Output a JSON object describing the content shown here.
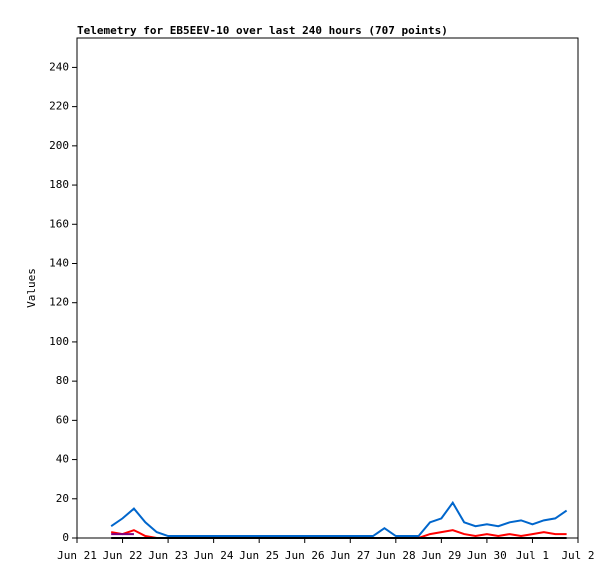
{
  "chart_data": {
    "type": "line",
    "title": "Telemetry for EB5EEV-10 over last 240 hours (707 points)",
    "y_label": "Values",
    "categories": [
      "Jun 21",
      null,
      null,
      null,
      "Jun 22",
      null,
      null,
      null,
      "Jun 23",
      null,
      null,
      null,
      "Jun 24",
      null,
      null,
      null,
      "Jun 25",
      null,
      null,
      null,
      "Jun 26",
      null,
      null,
      null,
      "Jun 27",
      null,
      null,
      null,
      "Jun 28",
      null,
      null,
      null,
      "Jun 29",
      null,
      null,
      null,
      "Jun 30",
      null,
      null,
      null,
      "Jul 1",
      null,
      null,
      null,
      "Jul 2"
    ],
    "series": [
      {
        "color": "#0066cc",
        "values": [
          null,
          null,
          null,
          6,
          10,
          15,
          8,
          3,
          1,
          1,
          1,
          1,
          1,
          1,
          1,
          1,
          1,
          1,
          1,
          1,
          1,
          1,
          1,
          1,
          1,
          1,
          1,
          5,
          1,
          1,
          1,
          8,
          10,
          18,
          8,
          6,
          7,
          6,
          8,
          9,
          7,
          9,
          10,
          14,
          null
        ]
      },
      {
        "color": "#ff0000",
        "values": [
          null,
          null,
          null,
          3,
          2,
          4,
          1,
          0,
          0,
          0,
          0,
          0,
          0,
          0,
          0,
          0,
          0,
          0,
          0,
          0,
          0,
          0,
          0,
          0,
          0,
          0,
          0,
          0,
          0,
          0,
          0,
          2,
          3,
          4,
          2,
          1,
          2,
          1,
          2,
          1,
          2,
          3,
          2,
          2,
          null
        ]
      },
      {
        "color": "#800080",
        "values": [
          null,
          null,
          null,
          2,
          2,
          2,
          null,
          null,
          null,
          null,
          null,
          null,
          null,
          null,
          null,
          null,
          null,
          null,
          null,
          null,
          null,
          null,
          null,
          null,
          null,
          null,
          null,
          null,
          null,
          null,
          null,
          null,
          null,
          null,
          null,
          null,
          null,
          null,
          null,
          null,
          null,
          null,
          null,
          null,
          null
        ]
      },
      {
        "color": "#000000",
        "values": [
          null,
          null,
          null,
          0,
          0,
          0,
          0,
          0,
          0,
          0,
          0,
          0,
          0,
          0,
          0,
          0,
          0,
          0,
          0,
          0,
          0,
          0,
          0,
          0,
          0,
          0,
          0,
          0,
          0,
          0,
          0,
          0,
          0,
          0,
          0,
          0,
          0,
          0,
          0,
          0,
          0,
          0,
          0,
          0,
          null
        ]
      }
    ],
    "ylim": [
      0,
      255
    ],
    "yticks": [
      0,
      20,
      40,
      60,
      80,
      100,
      120,
      140,
      160,
      180,
      200,
      220,
      240
    ]
  }
}
